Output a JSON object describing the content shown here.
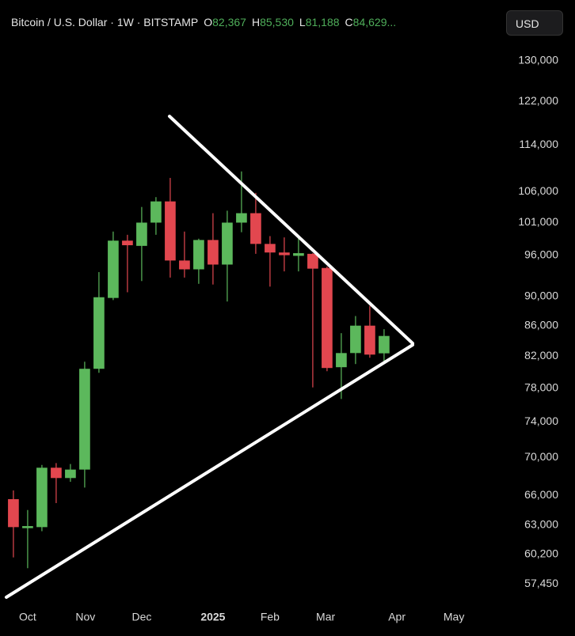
{
  "header": {
    "symbol": "Bitcoin / U.S. Dollar · 1W · BITSTAMP",
    "open_label": "O",
    "open": "82,367",
    "high_label": "H",
    "high": "85,530",
    "low_label": "L",
    "low": "81,188",
    "close_label": "C",
    "close": "84,629..."
  },
  "currency_button": "USD",
  "chart_data": {
    "type": "candlestick",
    "log_scale": true,
    "up_color": "#5cb85c",
    "down_color": "#e2474f",
    "xlim": [
      -0.94,
      34.06
    ],
    "xticks": [
      {
        "value": 1,
        "label": "Oct"
      },
      {
        "value": 5.05,
        "label": "Nov"
      },
      {
        "value": 9,
        "label": "Dec"
      },
      {
        "value": 14,
        "label": "2025"
      },
      {
        "value": 18,
        "label": "Feb"
      },
      {
        "value": 21.9,
        "label": "Mar"
      },
      {
        "value": 26.9,
        "label": "Apr"
      },
      {
        "value": 30.9,
        "label": "May"
      }
    ],
    "ylim": [
      55600,
      134400
    ],
    "yticks": [
      {
        "value": 130000,
        "label": "130,000"
      },
      {
        "value": 122000,
        "label": "122,000"
      },
      {
        "value": 114000,
        "label": "114,000"
      },
      {
        "value": 106000,
        "label": "106,000"
      },
      {
        "value": 101000,
        "label": "101,000"
      },
      {
        "value": 96000,
        "label": "96,000"
      },
      {
        "value": 90000,
        "label": "90,000"
      },
      {
        "value": 86000,
        "label": "86,000"
      },
      {
        "value": 82000,
        "label": "82,000"
      },
      {
        "value": 78000,
        "label": "78,000"
      },
      {
        "value": 74000,
        "label": "74,000"
      },
      {
        "value": 70000,
        "label": "70,000"
      },
      {
        "value": 66000,
        "label": "66,000"
      },
      {
        "value": 63000,
        "label": "63,000"
      },
      {
        "value": 60200,
        "label": "60,200"
      },
      {
        "value": 57450,
        "label": "57,450"
      }
    ],
    "open": [
      65600,
      62700,
      62800,
      68900,
      67800,
      68700,
      80400,
      89800,
      98200,
      97400,
      101000,
      104400,
      95200,
      93900,
      98300,
      94600,
      101000,
      102500,
      97700,
      96400,
      95900,
      96200,
      94100,
      80600,
      82400,
      86000,
      82367
    ],
    "high": [
      66500,
      64500,
      69200,
      69400,
      69300,
      81300,
      93500,
      99600,
      99100,
      103500,
      105100,
      108300,
      99600,
      98500,
      102500,
      102900,
      109400,
      105800,
      98900,
      98700,
      99000,
      96300,
      94300,
      85000,
      87300,
      88700,
      85530
    ],
    "low": [
      59900,
      58900,
      62400,
      65200,
      67400,
      66800,
      79900,
      89500,
      90600,
      92200,
      99100,
      92700,
      92700,
      91800,
      91700,
      89300,
      99500,
      96200,
      91400,
      93600,
      93600,
      78100,
      80100,
      76700,
      81000,
      81800,
      81188
    ],
    "close": [
      62800,
      62900,
      68900,
      67800,
      68700,
      80400,
      89900,
      98200,
      97500,
      101000,
      104400,
      95200,
      93900,
      98300,
      94600,
      101000,
      102500,
      97700,
      96400,
      96000,
      96300,
      94000,
      80500,
      82400,
      86000,
      82200,
      84629
    ]
  }
}
